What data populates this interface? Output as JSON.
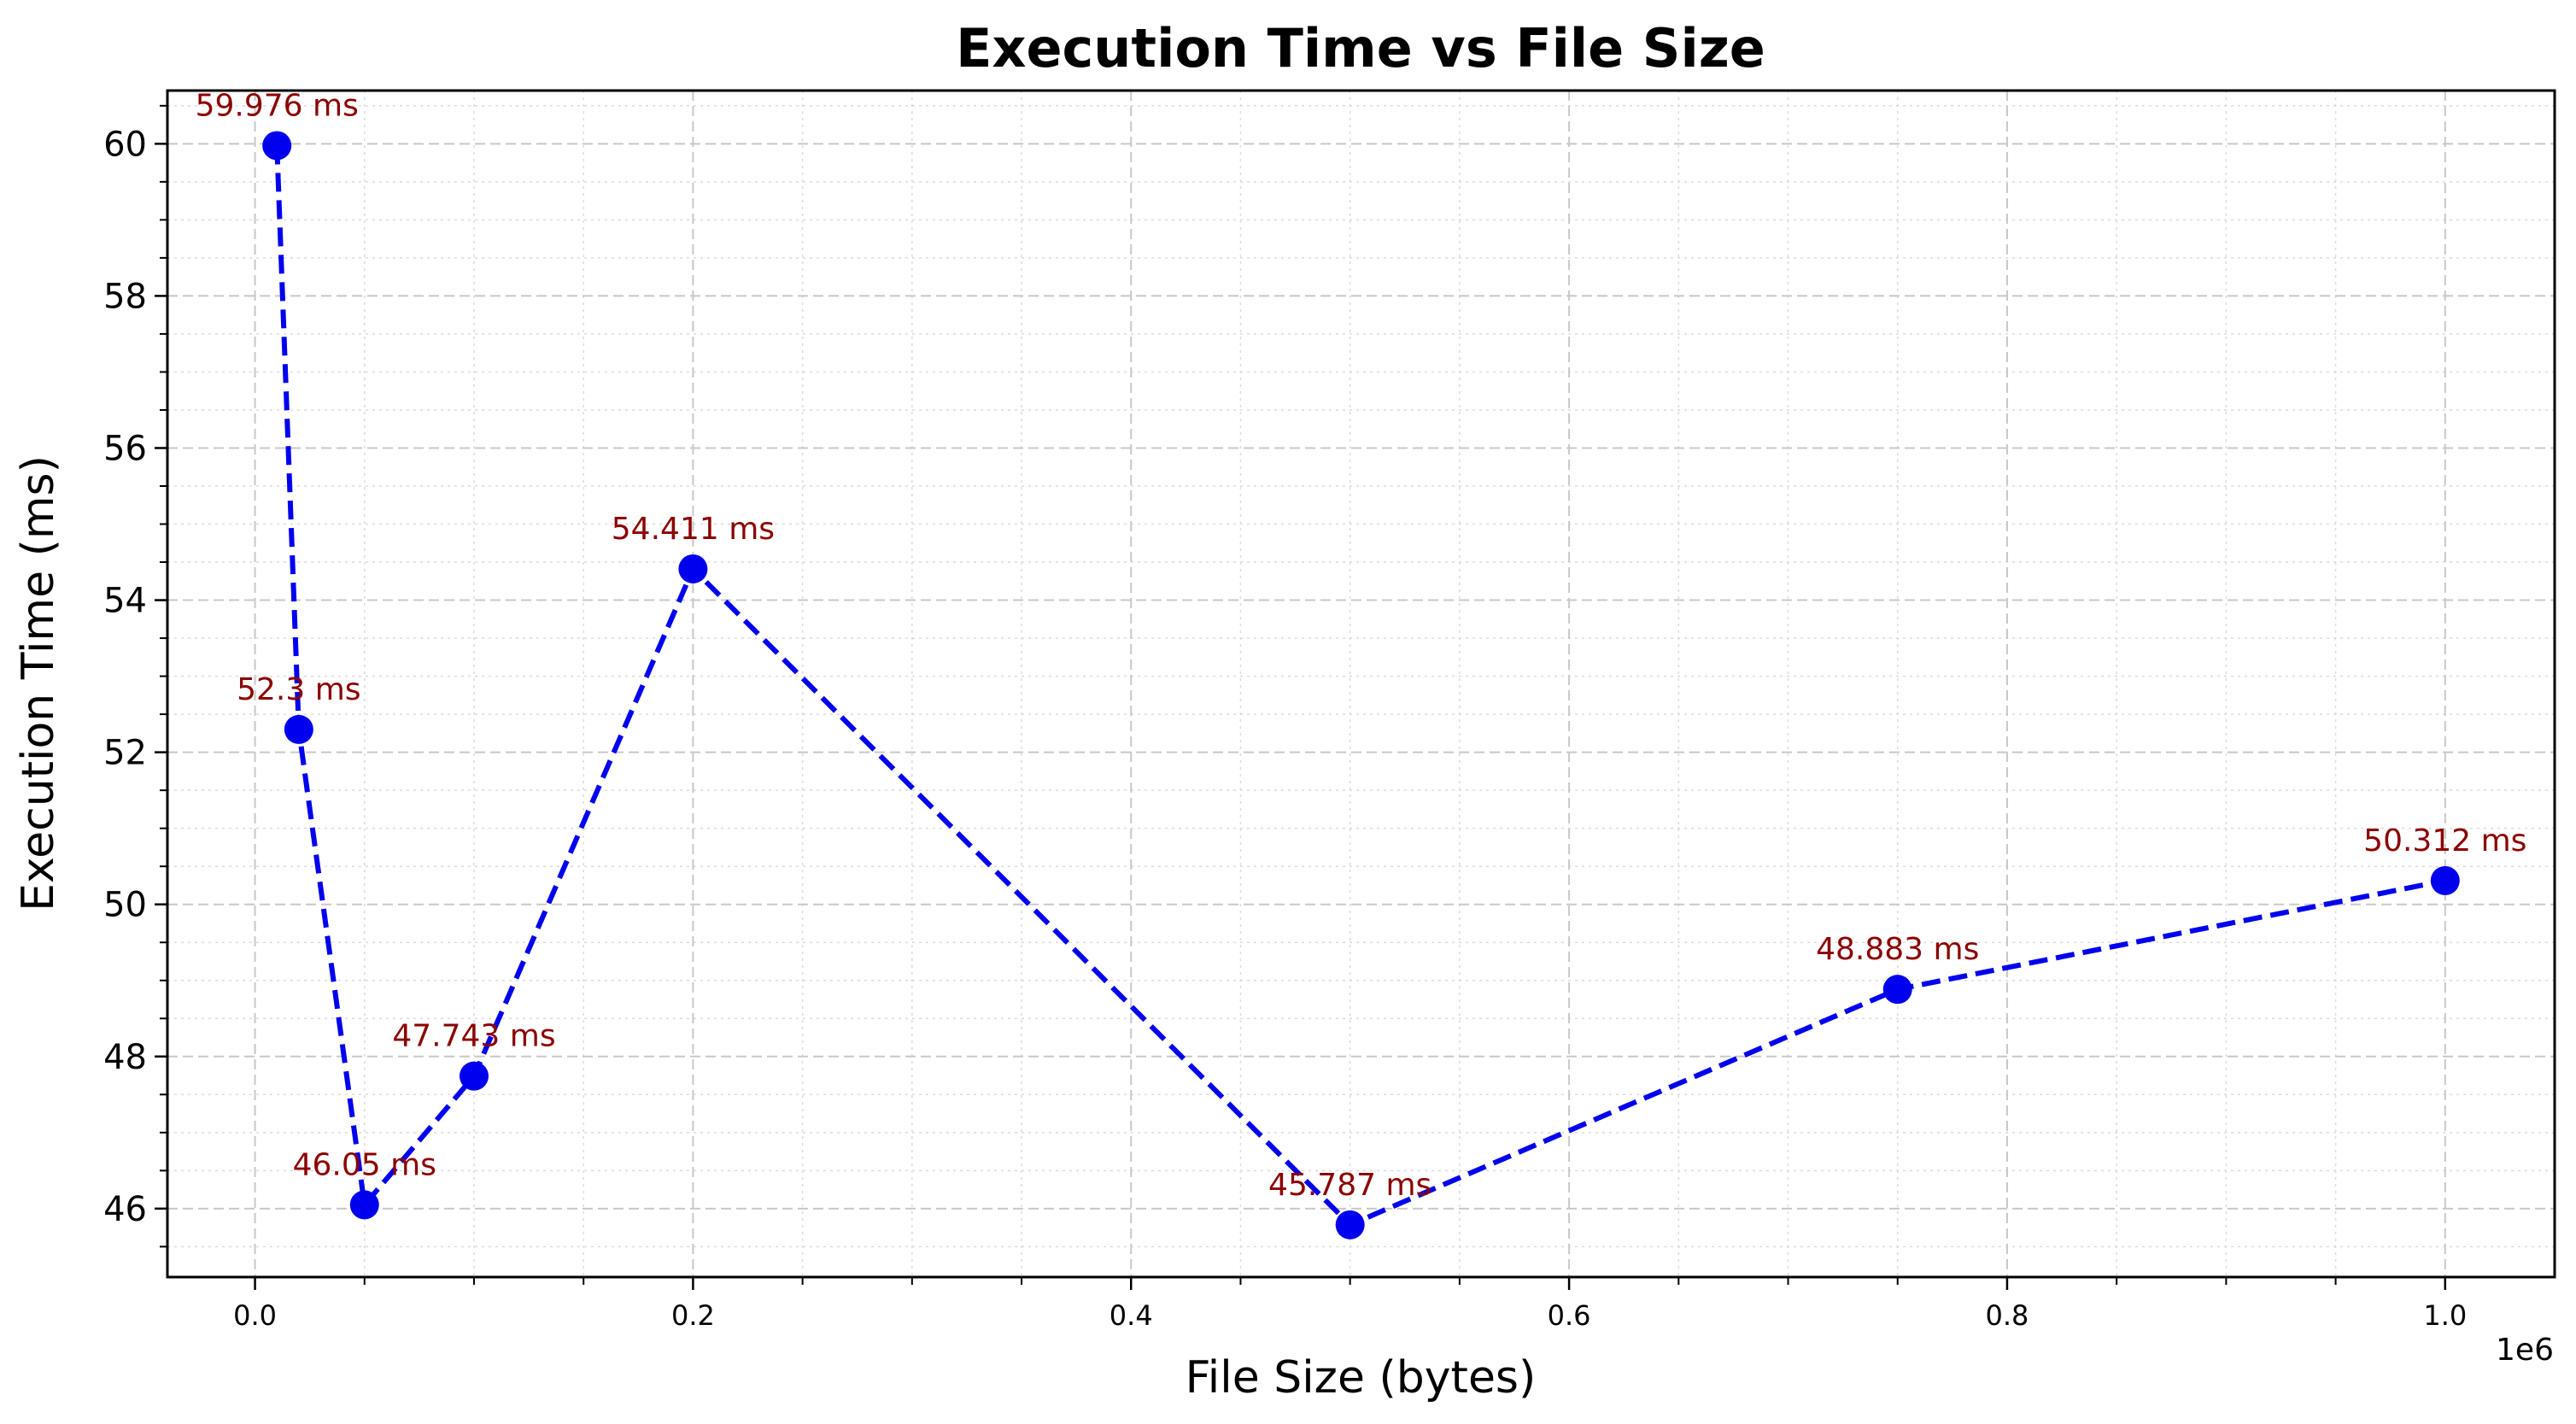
{
  "chart_data": {
    "type": "line",
    "title": "Execution Time vs File Size",
    "xlabel": "File Size (bytes)",
    "ylabel": "Execution Time (ms)",
    "x_offset_label": "1e6",
    "xlim": [
      -0.04,
      1.05
    ],
    "ylim": [
      45.1,
      60.7
    ],
    "x_ticks": [
      0.0,
      0.2,
      0.4,
      0.6,
      0.8,
      1.0
    ],
    "x_tick_labels": [
      "0.0",
      "0.2",
      "0.4",
      "0.6",
      "0.8",
      "1.0"
    ],
    "x_minor_ticks": [
      0.05,
      0.1,
      0.15,
      0.25,
      0.3,
      0.35,
      0.45,
      0.5,
      0.55,
      0.65,
      0.7,
      0.75,
      0.85,
      0.9,
      0.95
    ],
    "y_ticks": [
      46,
      48,
      50,
      52,
      54,
      56,
      58,
      60
    ],
    "y_tick_labels": [
      "46",
      "48",
      "50",
      "52",
      "54",
      "56",
      "58",
      "60"
    ],
    "y_minor_ticks": [
      45.5,
      46.5,
      47,
      47.5,
      48.5,
      49,
      49.5,
      50.5,
      51,
      51.5,
      52.5,
      53,
      53.5,
      54.5,
      55,
      55.5,
      56.5,
      57,
      57.5,
      58.5,
      59,
      59.5,
      60.5
    ],
    "grid": true,
    "series": [
      {
        "x": [
          10000,
          20000,
          50000,
          100000,
          200000,
          500000,
          750000,
          1000000
        ],
        "values": [
          59.976,
          52.3,
          46.05,
          47.743,
          54.411,
          45.787,
          48.883,
          50.312
        ],
        "labels": [
          "59.976 ms",
          "52.3 ms",
          "46.05 ms",
          "47.743 ms",
          "54.411 ms",
          "45.787 ms",
          "48.883 ms",
          "50.312 ms"
        ]
      }
    ],
    "colors": {
      "line": "#0000ee",
      "marker": "#0000ee",
      "data_label": "#8b0000"
    }
  }
}
